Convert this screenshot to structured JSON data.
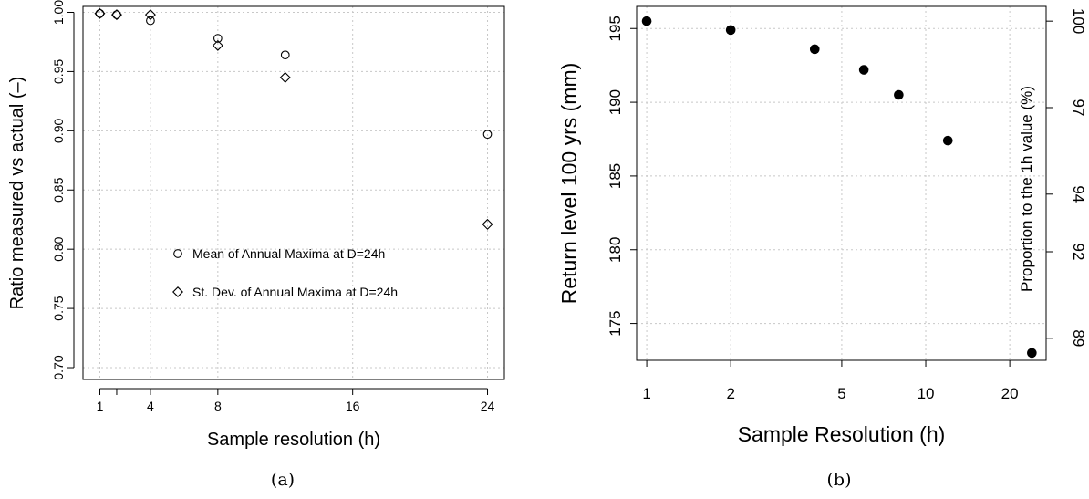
{
  "chart_data": [
    {
      "type": "scatter",
      "caption": "(a)",
      "xlabel": "Sample resolution (h)",
      "ylabel": "Ratio measured vs actual (–)",
      "xlim": [
        0,
        25
      ],
      "ylim": [
        0.69,
        1.005
      ],
      "x_ticks": [
        1,
        4,
        8,
        16,
        24
      ],
      "x_minor_ticks": [
        2
      ],
      "y_ticks": [
        0.7,
        0.75,
        0.8,
        0.85,
        0.9,
        0.95,
        1.0
      ],
      "y_tick_labels": [
        "0.70",
        "0.75",
        "0.80",
        "0.85",
        "0.90",
        "0.95",
        "1.00"
      ],
      "grid": true,
      "legend_position": "center-bottom",
      "series": [
        {
          "name": "Mean of Annual Maxima at D=24h",
          "marker": "circle",
          "points": [
            {
              "x": 1,
              "y": 0.999
            },
            {
              "x": 2,
              "y": 0.998
            },
            {
              "x": 4,
              "y": 0.993
            },
            {
              "x": 8,
              "y": 0.978
            },
            {
              "x": 12,
              "y": 0.964
            },
            {
              "x": 24,
              "y": 0.897
            }
          ]
        },
        {
          "name": "St. Dev. of Annual Maxima at D=24h",
          "marker": "diamond",
          "points": [
            {
              "x": 1,
              "y": 0.999
            },
            {
              "x": 2,
              "y": 0.998
            },
            {
              "x": 4,
              "y": 0.998
            },
            {
              "x": 8,
              "y": 0.972
            },
            {
              "x": 12,
              "y": 0.945
            },
            {
              "x": 24,
              "y": 0.821
            }
          ]
        }
      ]
    },
    {
      "type": "scatter",
      "caption": "(b)",
      "xlabel": "Sample Resolution (h)",
      "ylabel": "Return level 100 yrs (mm)",
      "y2label": "Proportion to the 1h value (%)",
      "x_scale": "log",
      "xlim": [
        0.92,
        27
      ],
      "ylim": [
        172.5,
        196.5
      ],
      "x_ticks": [
        1,
        2,
        5,
        10,
        20
      ],
      "y_ticks": [
        175,
        180,
        185,
        190,
        195
      ],
      "y2_ticks": [
        89,
        92,
        94,
        97,
        100
      ],
      "grid": true,
      "series": [
        {
          "marker": "filled-circle",
          "points": [
            {
              "x": 1,
              "y": 195.5
            },
            {
              "x": 2,
              "y": 194.9
            },
            {
              "x": 4,
              "y": 193.6
            },
            {
              "x": 6,
              "y": 192.2
            },
            {
              "x": 8,
              "y": 190.5
            },
            {
              "x": 12,
              "y": 187.4
            },
            {
              "x": 24,
              "y": 173.0
            }
          ]
        }
      ]
    }
  ]
}
